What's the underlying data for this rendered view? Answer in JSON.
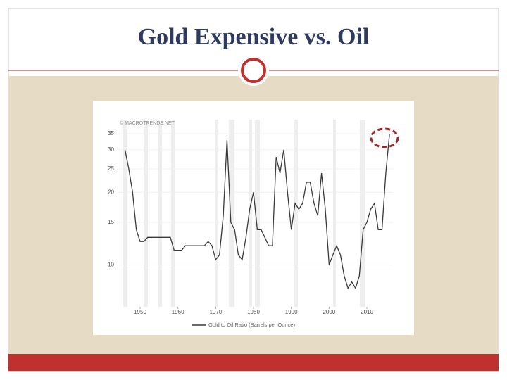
{
  "title": "Gold Expensive vs. Oil",
  "chart_data": {
    "type": "line",
    "watermark": "© MACROTRENDS.NET",
    "x": [
      1946,
      1947,
      1948,
      1949,
      1950,
      1951,
      1952,
      1953,
      1954,
      1955,
      1956,
      1957,
      1958,
      1959,
      1960,
      1961,
      1962,
      1963,
      1964,
      1965,
      1966,
      1967,
      1968,
      1969,
      1970,
      1971,
      1972,
      1973,
      1974,
      1975,
      1976,
      1977,
      1978,
      1979,
      1980,
      1981,
      1982,
      1983,
      1984,
      1985,
      1986,
      1987,
      1988,
      1989,
      1990,
      1991,
      1992,
      1993,
      1994,
      1995,
      1996,
      1997,
      1998,
      1999,
      2000,
      2001,
      2002,
      2003,
      2004,
      2005,
      2006,
      2007,
      2008,
      2009,
      2010,
      2011,
      2012,
      2013,
      2014,
      2015,
      2016
    ],
    "series": [
      {
        "name": "Gold to Oil Ratio (Barrels per Ounce)",
        "color": "#3a3a3a",
        "values": [
          30,
          25,
          20,
          14,
          12.5,
          12.5,
          13,
          13,
          13,
          13,
          13,
          13,
          13,
          11.5,
          11.5,
          11.5,
          12,
          12,
          12,
          12,
          12,
          12,
          12.5,
          12,
          10.5,
          11,
          16,
          33,
          15,
          14,
          11,
          10.5,
          13,
          17,
          20,
          14,
          14,
          13,
          12,
          12,
          28,
          24,
          30,
          20,
          14,
          18,
          17,
          18,
          22,
          22,
          18,
          16,
          24,
          17,
          10,
          11,
          12,
          11,
          9,
          8,
          8.5,
          8,
          9,
          14,
          15,
          17,
          18,
          14,
          14,
          24,
          35
        ]
      }
    ],
    "xlim": [
      1944,
      2017
    ],
    "xticks": [
      1950,
      1960,
      1970,
      1980,
      1990,
      2000,
      2010
    ],
    "ylim": [
      6.7,
      40
    ],
    "yticks": [
      10,
      15,
      20,
      25,
      30,
      35
    ],
    "log_y": true
  }
}
